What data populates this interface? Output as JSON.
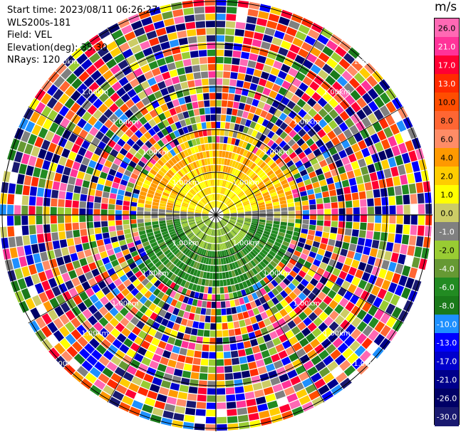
{
  "header": {
    "start_time": "Start time: 2023/08/11 06:26:27",
    "instrument": "WLS200s-181",
    "field": "Field: VEL",
    "elevation": "Elevation(deg): 35.30",
    "nrays": "NRays: 120"
  },
  "colorbar": {
    "unit": "m/s",
    "ticks": [
      "26.0",
      "21.0",
      "17.0",
      "13.0",
      "10.0",
      "8.0",
      "6.0",
      "4.0",
      "2.0",
      "1.0",
      "0.0",
      "-1.0",
      "-2.0",
      "-4.0",
      "-6.0",
      "-8.0",
      "-10.0",
      "-13.0",
      "-17.0",
      "-21.0",
      "-26.0",
      "-30.0"
    ],
    "colors": [
      "#ff69b4",
      "#ff3399",
      "#ff0033",
      "#ff2a00",
      "#ff4d00",
      "#ff6633",
      "#ff8c66",
      "#ff9900",
      "#ffcc00",
      "#ffff00",
      "#cccc66",
      "#808080",
      "#99cc33",
      "#669933",
      "#228b22",
      "#1a7a1a",
      "#1e90ff",
      "#0000ff",
      "#0000cc",
      "#00008b",
      "#000066",
      "#191970"
    ]
  },
  "range_labels": [
    "1.00km",
    "1.00km",
    "1.00km",
    "1.00km",
    "1.00km",
    "1.00km",
    "1.00km",
    "1.00km",
    "1.00km",
    "1.00km",
    "1.00km",
    "1.00km",
    "1.00km",
    "1.00km",
    "1.00km",
    "1.00km",
    "1.00km",
    "1.00km",
    "1.00km",
    "1.00km"
  ],
  "chart_data": {
    "type": "heatmap",
    "subtype": "ppi_polar",
    "field": "VEL",
    "units": "m/s",
    "nrays": 120,
    "grid": true,
    "colorbar_ticks": [
      26.0,
      21.0,
      17.0,
      13.0,
      10.0,
      8.0,
      6.0,
      4.0,
      2.0,
      1.0,
      0.0,
      -1.0,
      -2.0,
      -4.0,
      -6.0,
      -8.0,
      -10.0,
      -13.0,
      -17.0,
      -21.0,
      -26.0,
      -30.0
    ],
    "colorbar_range": [
      -30.0,
      26.0
    ],
    "near_field_pattern": {
      "north_half_inner": "0 to 6 m/s (yellow/orange)",
      "south_half_inner": "-1 to -8 m/s (green)",
      "horizontal_axis": "about 0 m/s (gray)",
      "far_field": "noise across full range"
    }
  }
}
